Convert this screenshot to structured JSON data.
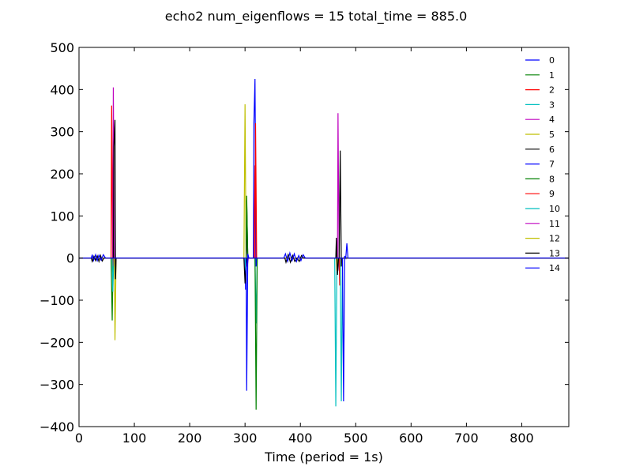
{
  "chart_data": {
    "type": "line",
    "title": "echo2 num_eigenflows = 15 total_time = 885.0",
    "xlabel": "Time (period = 1s)",
    "ylabel": "",
    "xlim": [
      0,
      885
    ],
    "ylim": [
      -400,
      500
    ],
    "x_ticks": [
      0,
      100,
      200,
      300,
      400,
      500,
      600,
      700,
      800
    ],
    "y_ticks": [
      -400,
      -300,
      -200,
      -100,
      0,
      100,
      200,
      300,
      400,
      500
    ],
    "x_tick_labels": [
      "0",
      "100",
      "200",
      "300",
      "400",
      "500",
      "600",
      "700",
      "800"
    ],
    "y_tick_labels": [
      "−400",
      "−300",
      "−200",
      "−100",
      "0",
      "100",
      "200",
      "300",
      "400",
      "500"
    ],
    "grid": false,
    "legend_position": "top-right",
    "series": [
      {
        "name": "0",
        "color": "#0000ff",
        "points": [
          [
            0,
            0
          ],
          [
            22,
            0
          ],
          [
            24,
            8
          ],
          [
            26,
            -6
          ],
          [
            28,
            0
          ],
          [
            885,
            0
          ]
        ]
      },
      {
        "name": "1",
        "color": "#008000",
        "points": [
          [
            0,
            0
          ],
          [
            58,
            0
          ],
          [
            60,
            -148
          ],
          [
            62,
            40
          ],
          [
            64,
            0
          ],
          [
            885,
            0
          ]
        ]
      },
      {
        "name": "2",
        "color": "#ff0000",
        "points": [
          [
            0,
            0
          ],
          [
            58,
            0
          ],
          [
            59,
            362
          ],
          [
            61,
            -20
          ],
          [
            62,
            0
          ],
          [
            316,
            0
          ],
          [
            318,
            220
          ],
          [
            320,
            0
          ],
          [
            885,
            0
          ]
        ]
      },
      {
        "name": "3",
        "color": "#00bfbf",
        "points": [
          [
            0,
            0
          ],
          [
            60,
            0
          ],
          [
            61,
            -80
          ],
          [
            63,
            0
          ],
          [
            318,
            0
          ],
          [
            320,
            -155
          ],
          [
            322,
            0
          ],
          [
            462,
            0
          ],
          [
            464,
            -352
          ],
          [
            466,
            0
          ],
          [
            885,
            0
          ]
        ]
      },
      {
        "name": "4",
        "color": "#bf00bf",
        "points": [
          [
            0,
            0
          ],
          [
            61,
            0
          ],
          [
            62,
            405
          ],
          [
            64,
            -20
          ],
          [
            65,
            0
          ],
          [
            302,
            0
          ],
          [
            303,
            45
          ],
          [
            305,
            0
          ],
          [
            467,
            0
          ],
          [
            468,
            344
          ],
          [
            470,
            -30
          ],
          [
            471,
            0
          ],
          [
            885,
            0
          ]
        ]
      },
      {
        "name": "5",
        "color": "#bfbf00",
        "points": [
          [
            0,
            0
          ],
          [
            64,
            0
          ],
          [
            65,
            -195
          ],
          [
            66,
            -100
          ],
          [
            67,
            0
          ],
          [
            298,
            0
          ],
          [
            300,
            365
          ],
          [
            302,
            -30
          ],
          [
            303,
            0
          ],
          [
            885,
            0
          ]
        ]
      },
      {
        "name": "6",
        "color": "#000000",
        "points": [
          [
            0,
            0
          ],
          [
            62,
            0
          ],
          [
            63,
            265
          ],
          [
            65,
            328
          ],
          [
            66,
            -50
          ],
          [
            67,
            0
          ],
          [
            302,
            0
          ],
          [
            303,
            137
          ],
          [
            305,
            0
          ],
          [
            470,
            0
          ],
          [
            472,
            255
          ],
          [
            474,
            -20
          ],
          [
            475,
            0
          ],
          [
            885,
            0
          ]
        ]
      },
      {
        "name": "7",
        "color": "#0000ff",
        "points": [
          [
            0,
            0
          ],
          [
            300,
            0
          ],
          [
            301,
            -75
          ],
          [
            303,
            0
          ],
          [
            315,
            0
          ],
          [
            316,
            320
          ],
          [
            318,
            425
          ],
          [
            320,
            -20
          ],
          [
            322,
            0
          ],
          [
            885,
            0
          ]
        ]
      },
      {
        "name": "8",
        "color": "#008000",
        "points": [
          [
            0,
            0
          ],
          [
            302,
            0
          ],
          [
            303,
            148
          ],
          [
            305,
            0
          ],
          [
            318,
            0
          ],
          [
            320,
            -360
          ],
          [
            322,
            0
          ],
          [
            885,
            0
          ]
        ]
      },
      {
        "name": "9",
        "color": "#ff0000",
        "points": [
          [
            0,
            0
          ],
          [
            318,
            0
          ],
          [
            319,
            320
          ],
          [
            321,
            0
          ],
          [
            470,
            0
          ],
          [
            471,
            -65
          ],
          [
            473,
            0
          ],
          [
            885,
            0
          ]
        ]
      },
      {
        "name": "10",
        "color": "#00bfbf",
        "points": [
          [
            0,
            0
          ],
          [
            300,
            0
          ],
          [
            301,
            -30
          ],
          [
            303,
            0
          ],
          [
            472,
            0
          ],
          [
            474,
            -340
          ],
          [
            476,
            0
          ],
          [
            885,
            0
          ]
        ]
      },
      {
        "name": "11",
        "color": "#bf00bf",
        "points": [
          [
            0,
            0
          ],
          [
            303,
            0
          ],
          [
            304,
            -20
          ],
          [
            306,
            0
          ],
          [
            885,
            0
          ]
        ]
      },
      {
        "name": "12",
        "color": "#bfbf00",
        "points": [
          [
            0,
            0
          ],
          [
            465,
            0
          ],
          [
            466,
            -30
          ],
          [
            468,
            0
          ],
          [
            885,
            0
          ]
        ]
      },
      {
        "name": "13",
        "color": "#000000",
        "points": [
          [
            0,
            0
          ],
          [
            22,
            0
          ],
          [
            24,
            -8
          ],
          [
            27,
            4
          ],
          [
            30,
            -6
          ],
          [
            33,
            5
          ],
          [
            36,
            -8
          ],
          [
            39,
            6
          ],
          [
            42,
            -7
          ],
          [
            45,
            0
          ],
          [
            298,
            0
          ],
          [
            300,
            -60
          ],
          [
            302,
            -20
          ],
          [
            304,
            0
          ],
          [
            372,
            0
          ],
          [
            374,
            -10
          ],
          [
            378,
            8
          ],
          [
            382,
            -10
          ],
          [
            386,
            6
          ],
          [
            390,
            -8
          ],
          [
            394,
            0
          ],
          [
            398,
            -8
          ],
          [
            402,
            6
          ],
          [
            406,
            0
          ],
          [
            464,
            0
          ],
          [
            465,
            48
          ],
          [
            467,
            -40
          ],
          [
            469,
            0
          ],
          [
            885,
            0
          ]
        ]
      },
      {
        "name": "14",
        "color": "#0000ff",
        "points": [
          [
            0,
            0
          ],
          [
            28,
            0
          ],
          [
            30,
            8
          ],
          [
            33,
            -6
          ],
          [
            36,
            7
          ],
          [
            40,
            -5
          ],
          [
            44,
            8
          ],
          [
            48,
            0
          ],
          [
            302,
            0
          ],
          [
            303,
            -315
          ],
          [
            305,
            10
          ],
          [
            307,
            0
          ],
          [
            370,
            0
          ],
          [
            373,
            10
          ],
          [
            377,
            -8
          ],
          [
            381,
            12
          ],
          [
            385,
            -6
          ],
          [
            389,
            10
          ],
          [
            393,
            -8
          ],
          [
            397,
            6
          ],
          [
            401,
            -6
          ],
          [
            405,
            8
          ],
          [
            409,
            0
          ],
          [
            476,
            0
          ],
          [
            478,
            -340
          ],
          [
            480,
            5
          ],
          [
            482,
            0
          ],
          [
            484,
            35
          ],
          [
            486,
            0
          ],
          [
            885,
            0
          ]
        ]
      }
    ]
  }
}
